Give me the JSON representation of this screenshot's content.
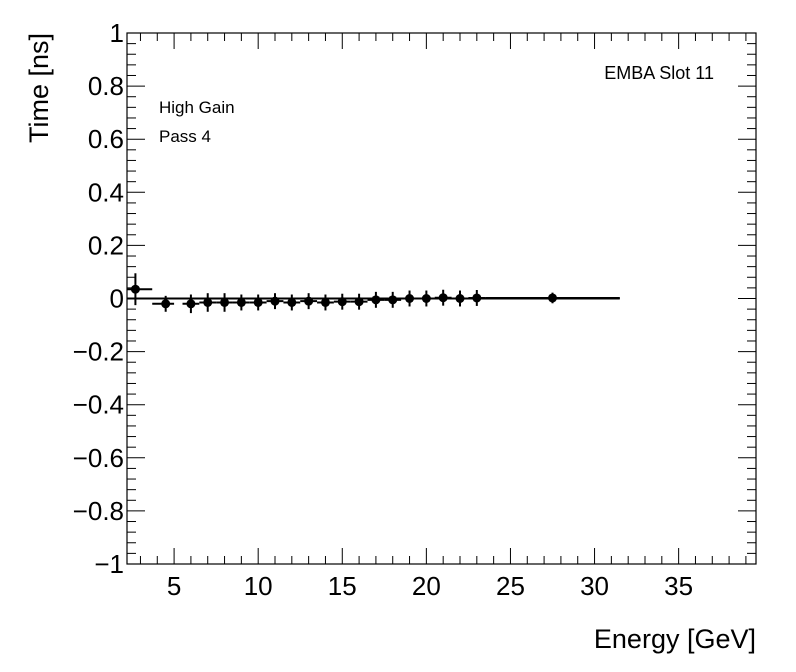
{
  "chart_data": {
    "type": "scatter",
    "title": "",
    "xlabel": "Energy [GeV]",
    "ylabel": "Time [ns]",
    "xlim": [
      2.2,
      39.6
    ],
    "ylim": [
      -1,
      1
    ],
    "x_ticks": [
      5,
      10,
      15,
      20,
      25,
      30,
      35
    ],
    "x_tick_labels": [
      "5",
      "10",
      "15",
      "20",
      "25",
      "30",
      "35"
    ],
    "y_ticks": [
      -1,
      -0.8,
      -0.6,
      -0.4,
      -0.2,
      0,
      0.2,
      0.4,
      0.6,
      0.8,
      1
    ],
    "y_tick_labels": [
      "−1",
      "−0.8",
      "−0.6",
      "−0.4",
      "−0.2",
      "0",
      "0.2",
      "0.4",
      "0.6",
      "0.8",
      "1"
    ],
    "annotations": {
      "top_right": "EMBA Slot 11",
      "line1": "High Gain",
      "line2": "Pass 4"
    },
    "fit_line": {
      "x_start": 2.2,
      "x_end": 31.5,
      "y": 0.0
    },
    "points": [
      {
        "x": 2.7,
        "y": 0.035,
        "xerr_lo": 0.5,
        "xerr_hi": 1.0,
        "yerr": 0.06
      },
      {
        "x": 4.5,
        "y": -0.02,
        "xerr_lo": 0.8,
        "xerr_hi": 0.5,
        "yerr": 0.03
      },
      {
        "x": 6.0,
        "y": -0.02,
        "xerr_lo": 0.5,
        "xerr_hi": 0.5,
        "yerr": 0.035
      },
      {
        "x": 7.0,
        "y": -0.015,
        "xerr_lo": 0.5,
        "xerr_hi": 0.5,
        "yerr": 0.035
      },
      {
        "x": 8.0,
        "y": -0.015,
        "xerr_lo": 0.5,
        "xerr_hi": 0.5,
        "yerr": 0.035
      },
      {
        "x": 9.0,
        "y": -0.015,
        "xerr_lo": 0.5,
        "xerr_hi": 0.5,
        "yerr": 0.03
      },
      {
        "x": 10.0,
        "y": -0.015,
        "xerr_lo": 0.5,
        "xerr_hi": 0.5,
        "yerr": 0.03
      },
      {
        "x": 11.0,
        "y": -0.01,
        "xerr_lo": 0.5,
        "xerr_hi": 0.5,
        "yerr": 0.03
      },
      {
        "x": 12.0,
        "y": -0.015,
        "xerr_lo": 0.5,
        "xerr_hi": 0.5,
        "yerr": 0.03
      },
      {
        "x": 13.0,
        "y": -0.01,
        "xerr_lo": 0.5,
        "xerr_hi": 0.5,
        "yerr": 0.03
      },
      {
        "x": 14.0,
        "y": -0.015,
        "xerr_lo": 0.5,
        "xerr_hi": 0.5,
        "yerr": 0.03
      },
      {
        "x": 15.0,
        "y": -0.012,
        "xerr_lo": 0.5,
        "xerr_hi": 0.5,
        "yerr": 0.03
      },
      {
        "x": 16.0,
        "y": -0.012,
        "xerr_lo": 0.5,
        "xerr_hi": 0.5,
        "yerr": 0.03
      },
      {
        "x": 17.0,
        "y": -0.005,
        "xerr_lo": 0.5,
        "xerr_hi": 0.5,
        "yerr": 0.03
      },
      {
        "x": 18.0,
        "y": -0.005,
        "xerr_lo": 0.5,
        "xerr_hi": 0.5,
        "yerr": 0.03
      },
      {
        "x": 19.0,
        "y": 0.0,
        "xerr_lo": 0.5,
        "xerr_hi": 0.5,
        "yerr": 0.03
      },
      {
        "x": 20.0,
        "y": 0.0,
        "xerr_lo": 0.5,
        "xerr_hi": 0.5,
        "yerr": 0.03
      },
      {
        "x": 21.0,
        "y": 0.003,
        "xerr_lo": 0.5,
        "xerr_hi": 0.5,
        "yerr": 0.03
      },
      {
        "x": 22.0,
        "y": 0.0,
        "xerr_lo": 0.5,
        "xerr_hi": 0.5,
        "yerr": 0.03
      },
      {
        "x": 23.0,
        "y": 0.002,
        "xerr_lo": 0.5,
        "xerr_hi": 0.5,
        "yerr": 0.03
      },
      {
        "x": 27.5,
        "y": 0.002,
        "xerr_lo": 4.0,
        "xerr_hi": 4.0,
        "yerr": 0.02
      }
    ],
    "grid": false,
    "legend": "none"
  }
}
